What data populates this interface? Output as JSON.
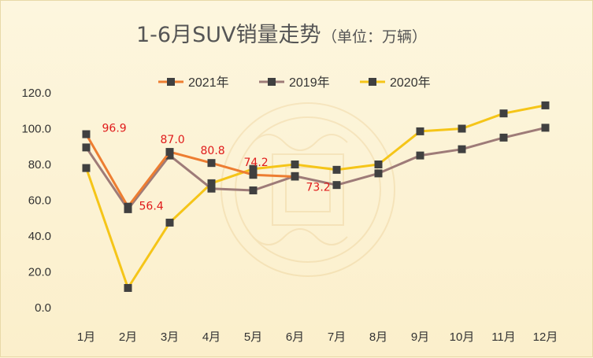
{
  "chart_data": {
    "type": "line",
    "title": "1-6月SUV销量走势",
    "subtitle": "（单位：万辆）",
    "categories": [
      "1月",
      "2月",
      "3月",
      "4月",
      "5月",
      "6月",
      "7月",
      "8月",
      "9月",
      "10月",
      "11月",
      "12月"
    ],
    "ylim": [
      0,
      120
    ],
    "yticks": [
      "0.0",
      "20.0",
      "40.0",
      "60.0",
      "80.0",
      "100.0",
      "120.0"
    ],
    "grid": false,
    "legend_position": "top",
    "series": [
      {
        "name": "2021年",
        "color": "#ed7d31",
        "values": [
          96.9,
          56.4,
          87.0,
          80.8,
          74.2,
          73.2,
          null,
          null,
          null,
          null,
          null,
          null
        ]
      },
      {
        "name": "2019年",
        "color": "#9e7b78",
        "values": [
          89.5,
          55.0,
          85.0,
          66.5,
          65.5,
          73.5,
          68.5,
          75.0,
          85.0,
          88.5,
          95.0,
          100.5
        ]
      },
      {
        "name": "2020年",
        "color": "#f5c518",
        "values": [
          78.0,
          11.0,
          47.5,
          69.5,
          77.5,
          80.0,
          77.0,
          80.0,
          98.5,
          100.0,
          108.5,
          113.0
        ]
      }
    ],
    "data_labels": [
      "96.9",
      "56.4",
      "87.0",
      "80.8",
      "74.2",
      "73.2"
    ]
  }
}
